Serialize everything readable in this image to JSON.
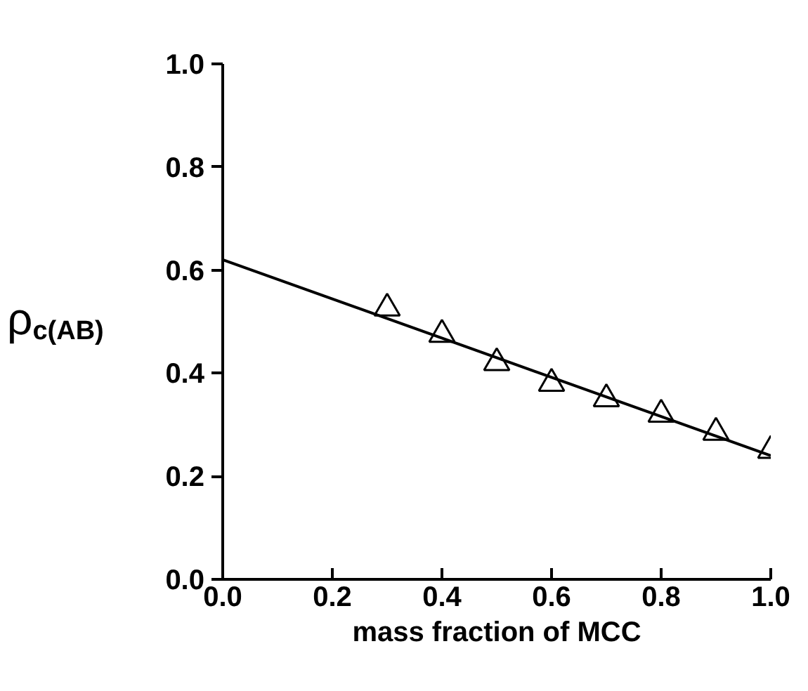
{
  "chart_data": {
    "type": "scatter",
    "xlabel": "mass fraction of MCC",
    "ylabel": "ρ$_{c(AB)}$",
    "xlim": [
      0,
      1
    ],
    "ylim": [
      0,
      1
    ],
    "xticks": [
      {
        "value": 0,
        "label": "0.0"
      },
      0.2,
      0.4,
      0.6,
      0.8,
      {
        "value": 1,
        "label": "1.0"
      }
    ],
    "yticks": [
      {
        "value": 0,
        "label": "0.0"
      },
      0.2,
      0.4,
      0.6,
      0.8,
      {
        "value": 1,
        "label": "1.0"
      }
    ],
    "grid": false,
    "series": [
      {
        "marker": "triangle",
        "color": "#000000",
        "x": [
          0.3,
          0.4,
          0.5,
          0.6,
          0.7,
          0.8,
          0.9,
          1.0
        ],
        "values": [
          0.526,
          0.475,
          0.42,
          0.38,
          0.35,
          0.32,
          0.285,
          0.25
        ]
      },
      {
        "type": "line",
        "color": "#000000",
        "x": [
          0,
          1
        ],
        "values": [
          0.62,
          0.24
        ]
      }
    ]
  }
}
